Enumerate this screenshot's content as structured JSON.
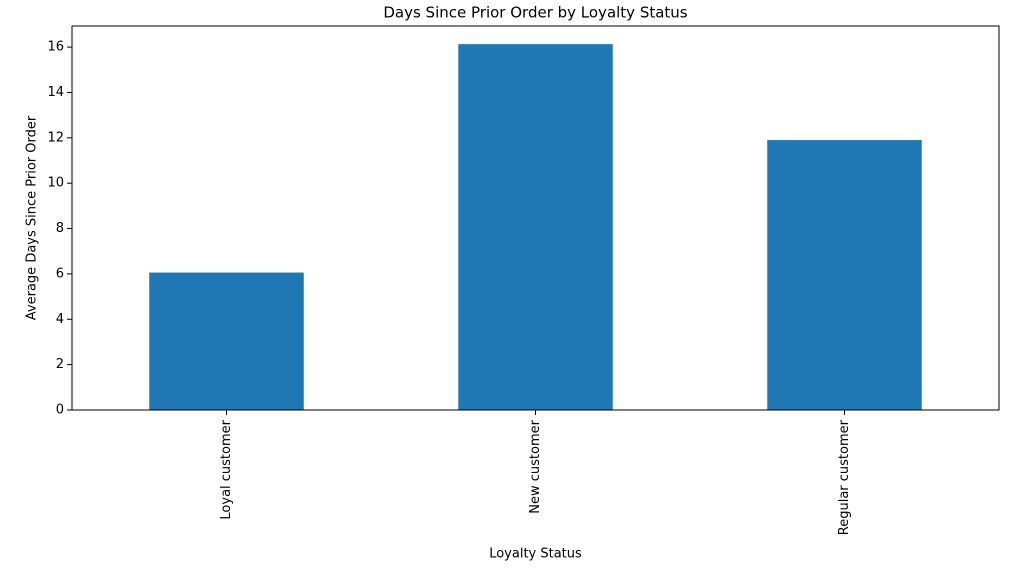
{
  "chart_data": {
    "type": "bar",
    "title": "Days Since Prior Order by Loyalty Status",
    "x_label": "Loyalty Status",
    "y_label": "Average Days Since Prior Order",
    "categories": [
      "Loyal customer",
      "New customer",
      "Regular customer"
    ],
    "values": [
      6.06,
      16.13,
      11.9
    ],
    "color": "#1f77b4",
    "ylim": [
      0,
      16.93
    ],
    "yticks": [
      0,
      2,
      4,
      6,
      8,
      10,
      12,
      14,
      16
    ],
    "grid": false
  }
}
